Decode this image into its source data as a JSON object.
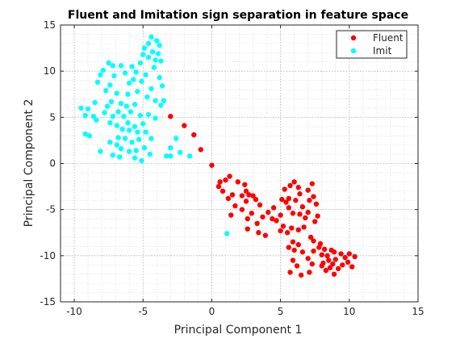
{
  "chart_data": {
    "type": "scatter",
    "title": "Fluent and Imitation sign separation in feature space",
    "xlabel": "Principal Component 1",
    "ylabel": "Principal Component 2",
    "xlim": [
      -11,
      15
    ],
    "ylim": [
      -15,
      15
    ],
    "xticks": [
      -10,
      -5,
      0,
      5,
      10,
      15
    ],
    "yticks": [
      -15,
      -10,
      -5,
      0,
      5,
      10,
      15
    ],
    "grid": true,
    "minor_grid": true,
    "legend_position": "top-right",
    "series": [
      {
        "name": "Fluent",
        "color": "#ff0000",
        "points": [
          [
            -3.0,
            5.1
          ],
          [
            -2.0,
            4.1
          ],
          [
            -1.3,
            3.1
          ],
          [
            -0.8,
            1.5
          ],
          [
            0.0,
            -0.2
          ],
          [
            0.6,
            -2.0
          ],
          [
            1.0,
            -1.8
          ],
          [
            0.5,
            -2.5
          ],
          [
            0.8,
            -3.0
          ],
          [
            1.3,
            -1.4
          ],
          [
            1.9,
            -2.0
          ],
          [
            1.5,
            -3.4
          ],
          [
            1.2,
            -3.8
          ],
          [
            1.7,
            -4.6
          ],
          [
            1.4,
            -5.6
          ],
          [
            2.2,
            -3.5
          ],
          [
            2.5,
            -4.1
          ],
          [
            2.4,
            -2.3
          ],
          [
            2.5,
            -3.0
          ],
          [
            2.7,
            -3.4
          ],
          [
            3.0,
            -3.5
          ],
          [
            2.2,
            -5.0
          ],
          [
            2.6,
            -6.0
          ],
          [
            2.9,
            -5.4
          ],
          [
            3.2,
            -3.9
          ],
          [
            3.5,
            -4.5
          ],
          [
            3.7,
            -5.8
          ],
          [
            3.3,
            -6.5
          ],
          [
            3.4,
            -7.5
          ],
          [
            2.6,
            -7.1
          ],
          [
            3.9,
            -7.8
          ],
          [
            4.1,
            -5.3
          ],
          [
            4.4,
            -6.0
          ],
          [
            4.5,
            -4.8
          ],
          [
            4.7,
            -6.2
          ],
          [
            5.0,
            -5.6
          ],
          [
            5.1,
            -3.9
          ],
          [
            5.4,
            -4.2
          ],
          [
            5.2,
            -6.8
          ],
          [
            5.5,
            -7.5
          ],
          [
            5.0,
            -7.3
          ],
          [
            5.8,
            -7.0
          ],
          [
            5.6,
            -4.8
          ],
          [
            5.9,
            -5.4
          ],
          [
            5.3,
            -2.8
          ],
          [
            5.7,
            -2.4
          ],
          [
            6.0,
            -2.0
          ],
          [
            5.6,
            -3.8
          ],
          [
            6.3,
            -2.6
          ],
          [
            6.4,
            -3.3
          ],
          [
            6.1,
            -4.0
          ],
          [
            6.6,
            -4.7
          ],
          [
            6.4,
            -5.5
          ],
          [
            6.3,
            -7.2
          ],
          [
            6.7,
            -6.9
          ],
          [
            6.8,
            -5.9
          ],
          [
            7.0,
            -5.3
          ],
          [
            7.1,
            -4.0
          ],
          [
            7.4,
            -3.6
          ],
          [
            7.3,
            -2.2
          ],
          [
            7.0,
            -2.9
          ],
          [
            7.6,
            -4.4
          ],
          [
            7.7,
            -5.7
          ],
          [
            7.5,
            -6.3
          ],
          [
            7.2,
            -8.0
          ],
          [
            7.4,
            -8.4
          ],
          [
            5.9,
            -8.5
          ],
          [
            6.0,
            -9.4
          ],
          [
            5.6,
            -9.1
          ],
          [
            6.3,
            -8.8
          ],
          [
            6.6,
            -9.6
          ],
          [
            5.7,
            -11.8
          ],
          [
            5.9,
            -10.5
          ],
          [
            6.2,
            -11.1
          ],
          [
            6.5,
            -12.1
          ],
          [
            7.0,
            -10.3
          ],
          [
            7.3,
            -10.9
          ],
          [
            7.1,
            -11.8
          ],
          [
            7.4,
            -9.5
          ],
          [
            7.8,
            -9.1
          ],
          [
            8.0,
            -9.9
          ],
          [
            8.2,
            -9.3
          ],
          [
            8.4,
            -10.0
          ],
          [
            8.1,
            -10.8
          ],
          [
            8.5,
            -10.5
          ],
          [
            8.0,
            -11.1
          ],
          [
            8.3,
            -11.6
          ],
          [
            8.6,
            -11.3
          ],
          [
            8.9,
            -9.6
          ],
          [
            9.0,
            -10.4
          ],
          [
            8.8,
            -10.9
          ],
          [
            9.2,
            -11.4
          ],
          [
            8.9,
            -12.0
          ],
          [
            9.4,
            -9.8
          ],
          [
            9.7,
            -10.2
          ],
          [
            9.5,
            -11.0
          ],
          [
            9.9,
            -10.7
          ],
          [
            10.0,
            -9.8
          ],
          [
            10.2,
            -11.2
          ],
          [
            10.4,
            -10.1
          ],
          [
            8.7,
            -9.4
          ],
          [
            7.9,
            -8.7
          ]
        ]
      },
      {
        "name": "Imit",
        "color": "#00ffff",
        "points": [
          [
            -4.4,
            13.7
          ],
          [
            -4.6,
            13.0
          ],
          [
            -4.0,
            13.3
          ],
          [
            -3.8,
            12.8
          ],
          [
            -4.3,
            12.1
          ],
          [
            -4.9,
            12.5
          ],
          [
            -5.0,
            11.8
          ],
          [
            -3.9,
            11.9
          ],
          [
            -4.1,
            11.2
          ],
          [
            -4.6,
            11.5
          ],
          [
            -3.7,
            11.1
          ],
          [
            -5.2,
            10.9
          ],
          [
            -5.8,
            10.5
          ],
          [
            -5.5,
            9.9
          ],
          [
            -4.2,
            10.4
          ],
          [
            -4.8,
            9.6
          ],
          [
            -3.8,
            9.3
          ],
          [
            -7.5,
            10.9
          ],
          [
            -7.2,
            10.6
          ],
          [
            -7.9,
            10.1
          ],
          [
            -6.6,
            10.6
          ],
          [
            -6.3,
            9.8
          ],
          [
            -7.1,
            9.5
          ],
          [
            -8.1,
            9.6
          ],
          [
            -8.3,
            8.8
          ],
          [
            -7.4,
            8.5
          ],
          [
            -6.0,
            8.7
          ],
          [
            -5.7,
            9.1
          ],
          [
            -5.1,
            8.9
          ],
          [
            -4.4,
            8.1
          ],
          [
            -3.6,
            8.4
          ],
          [
            -7.7,
            7.9
          ],
          [
            -6.9,
            7.6
          ],
          [
            -6.1,
            7.5
          ],
          [
            -5.4,
            7.8
          ],
          [
            -4.7,
            7.2
          ],
          [
            -4.1,
            6.8
          ],
          [
            -3.7,
            6.3
          ],
          [
            -3.5,
            6.8
          ],
          [
            -7.3,
            6.7
          ],
          [
            -7.6,
            6.2
          ],
          [
            -6.6,
            6.5
          ],
          [
            -6.2,
            6.2
          ],
          [
            -5.6,
            6.4
          ],
          [
            -8.5,
            6.6
          ],
          [
            -9.0,
            5.9
          ],
          [
            -9.5,
            6.0
          ],
          [
            -8.6,
            5.1
          ],
          [
            -9.2,
            5.2
          ],
          [
            -7.8,
            5.5
          ],
          [
            -7.2,
            5.1
          ],
          [
            -6.4,
            5.1
          ],
          [
            -6.8,
            5.6
          ],
          [
            -5.9,
            5.6
          ],
          [
            -5.2,
            5.2
          ],
          [
            -4.6,
            5.3
          ],
          [
            -4.1,
            4.9
          ],
          [
            -7.4,
            4.4
          ],
          [
            -6.9,
            4.1
          ],
          [
            -6.1,
            4.4
          ],
          [
            -5.6,
            4.0
          ],
          [
            -5.0,
            4.3
          ],
          [
            -8.4,
            4.7
          ],
          [
            -6.5,
            3.7
          ],
          [
            -6.0,
            3.6
          ],
          [
            -5.4,
            3.4
          ],
          [
            -4.8,
            3.4
          ],
          [
            -9.2,
            3.2
          ],
          [
            -8.9,
            3.0
          ],
          [
            -6.8,
            2.8
          ],
          [
            -6.3,
            2.7
          ],
          [
            -5.8,
            2.3
          ],
          [
            -5.3,
            2.6
          ],
          [
            -4.4,
            2.7
          ],
          [
            -2.6,
            2.7
          ],
          [
            -3.0,
            1.7
          ],
          [
            -2.3,
            1.2
          ],
          [
            -1.6,
            0.8
          ],
          [
            -7.4,
            2.3
          ],
          [
            -6.9,
            2.0
          ],
          [
            -6.6,
            1.6
          ],
          [
            -6.0,
            1.3
          ],
          [
            -5.5,
            1.4
          ],
          [
            -4.9,
            1.7
          ],
          [
            -3.3,
            0.8
          ],
          [
            -3.0,
            0.8
          ],
          [
            -5.6,
            0.6
          ],
          [
            -5.1,
            0.3
          ],
          [
            -4.5,
            1.0
          ],
          [
            -8.1,
            1.3
          ],
          [
            -7.2,
            0.9
          ],
          [
            -6.7,
            0.7
          ],
          [
            1.1,
            -7.6
          ]
        ]
      }
    ]
  }
}
